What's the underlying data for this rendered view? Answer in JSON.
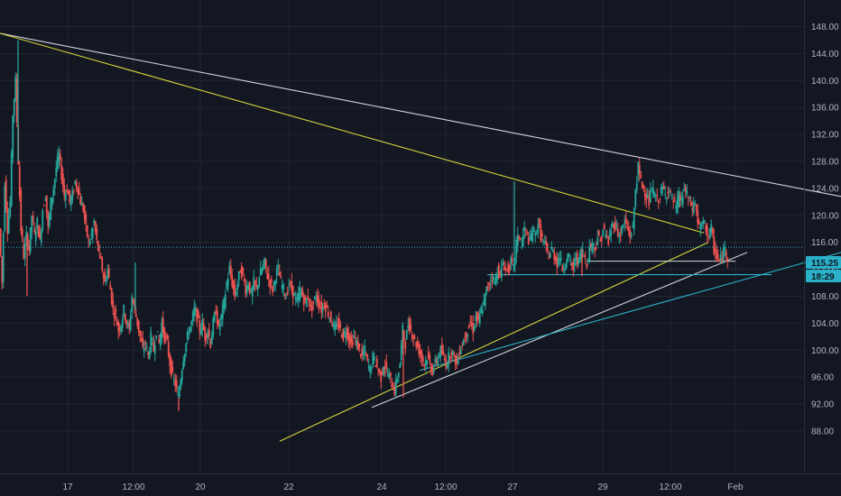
{
  "chart_data": {
    "type": "candlestick",
    "ylim": [
      86.5,
      151
    ],
    "y_ticks": [
      "148.00",
      "144.00",
      "140.00",
      "136.00",
      "132.00",
      "128.00",
      "124.00",
      "120.00",
      "116.00",
      "112.00",
      "108.00",
      "104.00",
      "100.00",
      "96.00",
      "92.00",
      "88.00"
    ],
    "x_ticks": [
      "17",
      "12:00",
      "20",
      "22",
      "24",
      "12:00",
      "27",
      "29",
      "12:00",
      "Feb"
    ],
    "last_price": "115.25",
    "countdown": "18:29",
    "colors": {
      "background": "#131722",
      "grid": "#232733",
      "up": "#26a69a",
      "down": "#ef5350",
      "trend_white": "#d1d4dc",
      "trend_yellow": "#d4d43a",
      "trend_cyan": "#2ab0c8",
      "price_line": "#2ab0c8",
      "axis_text": "#b2b5be"
    },
    "close_path": [
      [
        0,
        118
      ],
      [
        3,
        110
      ],
      [
        6,
        125
      ],
      [
        9,
        118
      ],
      [
        12,
        122
      ],
      [
        15,
        135
      ],
      [
        18,
        140
      ],
      [
        21,
        128
      ],
      [
        24,
        118
      ],
      [
        27,
        114
      ],
      [
        30,
        117
      ],
      [
        33,
        115
      ],
      [
        36,
        120
      ],
      [
        39,
        117
      ],
      [
        42,
        119
      ],
      [
        45,
        116
      ],
      [
        48,
        121
      ],
      [
        51,
        123
      ],
      [
        54,
        118
      ],
      [
        57,
        122
      ],
      [
        60,
        124
      ],
      [
        63,
        127
      ],
      [
        66,
        129
      ],
      [
        69,
        126
      ],
      [
        72,
        123
      ],
      [
        75,
        124
      ],
      [
        78,
        122
      ],
      [
        81,
        123
      ],
      [
        84,
        125
      ],
      [
        87,
        124
      ],
      [
        90,
        122
      ],
      [
        93,
        121
      ],
      [
        96,
        118
      ],
      [
        99,
        116
      ],
      [
        102,
        117
      ],
      [
        105,
        119
      ],
      [
        108,
        116
      ],
      [
        111,
        114
      ],
      [
        114,
        112
      ],
      [
        117,
        110
      ],
      [
        120,
        112
      ],
      [
        123,
        109
      ],
      [
        126,
        106
      ],
      [
        129,
        105
      ],
      [
        132,
        103
      ],
      [
        135,
        104
      ],
      [
        138,
        106
      ],
      [
        141,
        104
      ],
      [
        144,
        103
      ],
      [
        147,
        108
      ],
      [
        150,
        106
      ],
      [
        153,
        104
      ],
      [
        156,
        102
      ],
      [
        159,
        100
      ],
      [
        162,
        101
      ],
      [
        165,
        99
      ],
      [
        168,
        102
      ],
      [
        171,
        100
      ],
      [
        174,
        103
      ],
      [
        177,
        101
      ],
      [
        180,
        104
      ],
      [
        183,
        102
      ],
      [
        186,
        101
      ],
      [
        189,
        98
      ],
      [
        192,
        96
      ],
      [
        195,
        95
      ],
      [
        198,
        93
      ],
      [
        201,
        96
      ],
      [
        204,
        99
      ],
      [
        207,
        101
      ],
      [
        210,
        103
      ],
      [
        213,
        104
      ],
      [
        216,
        106
      ],
      [
        219,
        105
      ],
      [
        222,
        103
      ],
      [
        225,
        104
      ],
      [
        228,
        102
      ],
      [
        231,
        103
      ],
      [
        234,
        101
      ],
      [
        237,
        104
      ],
      [
        240,
        106
      ],
      [
        243,
        103
      ],
      [
        246,
        105
      ],
      [
        249,
        107
      ],
      [
        252,
        110
      ],
      [
        255,
        112
      ],
      [
        258,
        110
      ],
      [
        261,
        108
      ],
      [
        264,
        110
      ],
      [
        267,
        112
      ],
      [
        270,
        111
      ],
      [
        273,
        109
      ],
      [
        276,
        110
      ],
      [
        279,
        108
      ],
      [
        282,
        110
      ],
      [
        285,
        109
      ],
      [
        288,
        111
      ],
      [
        291,
        112
      ],
      [
        294,
        113
      ],
      [
        297,
        111
      ],
      [
        300,
        110
      ],
      [
        303,
        109
      ],
      [
        306,
        111
      ],
      [
        309,
        112
      ],
      [
        312,
        110
      ],
      [
        315,
        109
      ],
      [
        318,
        108
      ],
      [
        321,
        110
      ],
      [
        324,
        109
      ],
      [
        327,
        108
      ],
      [
        330,
        107
      ],
      [
        333,
        109
      ],
      [
        336,
        108
      ],
      [
        339,
        107
      ],
      [
        342,
        108
      ],
      [
        345,
        106
      ],
      [
        348,
        107
      ],
      [
        351,
        108
      ],
      [
        354,
        107
      ],
      [
        357,
        106
      ],
      [
        360,
        107
      ],
      [
        363,
        106
      ],
      [
        366,
        105
      ],
      [
        369,
        104
      ],
      [
        372,
        103
      ],
      [
        375,
        104
      ],
      [
        378,
        103
      ],
      [
        381,
        102
      ],
      [
        384,
        103
      ],
      [
        387,
        102
      ],
      [
        390,
        101
      ],
      [
        393,
        102
      ],
      [
        396,
        101
      ],
      [
        399,
        100
      ],
      [
        402,
        99
      ],
      [
        405,
        100
      ],
      [
        408,
        98
      ],
      [
        411,
        97
      ],
      [
        414,
        99
      ],
      [
        417,
        98
      ],
      [
        420,
        97
      ],
      [
        423,
        96
      ],
      [
        426,
        98
      ],
      [
        429,
        97
      ],
      [
        432,
        96
      ],
      [
        435,
        95
      ],
      [
        438,
        94
      ],
      [
        441,
        96
      ],
      [
        444,
        98
      ],
      [
        447,
        103
      ],
      [
        450,
        101
      ],
      [
        453,
        104
      ],
      [
        456,
        103
      ],
      [
        459,
        102
      ],
      [
        462,
        101
      ],
      [
        465,
        100
      ],
      [
        468,
        99
      ],
      [
        471,
        98
      ],
      [
        474,
        99
      ],
      [
        477,
        98
      ],
      [
        480,
        97
      ],
      [
        483,
        98
      ],
      [
        486,
        99
      ],
      [
        489,
        100
      ],
      [
        492,
        99
      ],
      [
        495,
        98
      ],
      [
        498,
        99
      ],
      [
        501,
        100
      ],
      [
        504,
        99
      ],
      [
        507,
        98
      ],
      [
        510,
        100
      ],
      [
        513,
        101
      ],
      [
        516,
        102
      ],
      [
        519,
        103
      ],
      [
        522,
        104
      ],
      [
        525,
        103
      ],
      [
        528,
        105
      ],
      [
        531,
        104
      ],
      [
        534,
        106
      ],
      [
        537,
        107
      ],
      [
        540,
        109
      ],
      [
        543,
        110
      ],
      [
        546,
        111
      ],
      [
        549,
        110
      ],
      [
        552,
        112
      ],
      [
        555,
        111
      ],
      [
        558,
        113
      ],
      [
        561,
        112
      ],
      [
        564,
        112
      ],
      [
        567,
        113
      ],
      [
        570,
        112
      ],
      [
        573,
        116
      ],
      [
        576,
        117
      ],
      [
        579,
        116
      ],
      [
        582,
        118
      ],
      [
        585,
        117
      ],
      [
        588,
        116
      ],
      [
        591,
        118
      ],
      [
        594,
        117
      ],
      [
        597,
        119
      ],
      [
        600,
        117
      ],
      [
        603,
        116
      ],
      [
        606,
        115
      ],
      [
        609,
        114
      ],
      [
        612,
        115
      ],
      [
        615,
        114
      ],
      [
        618,
        113
      ],
      [
        621,
        114
      ],
      [
        624,
        112
      ],
      [
        627,
        113
      ],
      [
        630,
        114
      ],
      [
        633,
        113
      ],
      [
        636,
        112
      ],
      [
        639,
        114
      ],
      [
        642,
        113
      ],
      [
        645,
        115
      ],
      [
        648,
        114
      ],
      [
        651,
        113
      ],
      [
        654,
        115
      ],
      [
        657,
        116
      ],
      [
        660,
        115
      ],
      [
        663,
        117
      ],
      [
        666,
        116
      ],
      [
        669,
        118
      ],
      [
        672,
        117
      ],
      [
        675,
        116
      ],
      [
        678,
        118
      ],
      [
        681,
        119
      ],
      [
        684,
        118
      ],
      [
        687,
        117
      ],
      [
        690,
        118
      ],
      [
        693,
        119
      ],
      [
        696,
        118
      ],
      [
        699,
        117
      ],
      [
        702,
        118
      ],
      [
        705,
        124
      ],
      [
        708,
        127
      ],
      [
        711,
        125
      ],
      [
        714,
        124
      ],
      [
        717,
        123
      ],
      [
        720,
        122
      ],
      [
        723,
        124
      ],
      [
        726,
        123
      ],
      [
        729,
        122
      ],
      [
        732,
        123
      ],
      [
        735,
        124
      ],
      [
        738,
        123
      ],
      [
        741,
        124
      ],
      [
        744,
        123
      ],
      [
        747,
        122
      ],
      [
        750,
        121
      ],
      [
        753,
        123
      ],
      [
        756,
        122
      ],
      [
        759,
        124
      ],
      [
        762,
        123
      ],
      [
        765,
        122
      ],
      [
        768,
        121
      ],
      [
        771,
        122
      ],
      [
        774,
        119
      ],
      [
        777,
        118
      ],
      [
        780,
        119
      ],
      [
        783,
        118
      ],
      [
        786,
        117
      ],
      [
        789,
        118
      ],
      [
        792,
        115
      ],
      [
        795,
        114
      ],
      [
        798,
        113
      ],
      [
        801,
        114
      ],
      [
        804,
        115
      ],
      [
        807,
        114
      ]
    ],
    "spikes": [
      [
        20,
        146
      ],
      [
        30,
        108
      ],
      [
        150,
        113
      ],
      [
        198,
        91
      ],
      [
        447,
        93
      ],
      [
        570,
        125
      ],
      [
        707,
        128
      ],
      [
        645,
        111
      ]
    ],
    "trend_lines": [
      {
        "color": "white",
        "from": [
          0,
          147
        ],
        "to": [
          932,
          122.8
        ]
      },
      {
        "color": "yellow",
        "from": [
          0,
          147
        ],
        "to": [
          780,
          117.4
        ]
      },
      {
        "color": "yellow",
        "from": [
          310,
          86.5
        ],
        "to": [
          785,
          116
        ]
      },
      {
        "color": "white",
        "from": [
          412,
          91.5
        ],
        "to": [
          828,
          114.5
        ]
      },
      {
        "color": "cyan",
        "from": [
          465,
          97
        ],
        "to": [
          932,
          114.5
        ]
      },
      {
        "color": "cyan",
        "from": [
          540,
          111.2
        ],
        "to": [
          855,
          111.2
        ]
      },
      {
        "color": "white",
        "from": [
          650,
          113.2
        ],
        "to": [
          815,
          113.2
        ]
      }
    ],
    "price_level": 115.25
  }
}
